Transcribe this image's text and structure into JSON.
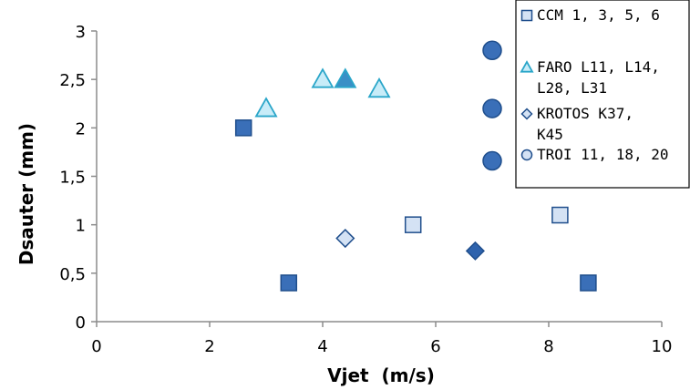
{
  "chart_data": {
    "type": "scatter",
    "xlabel": "Vjet  (m/s)",
    "ylabel": "Dsauter (mm)",
    "xlim": [
      0,
      10
    ],
    "ylim": [
      0,
      3
    ],
    "xticks": [
      "0",
      "2",
      "4",
      "6",
      "8",
      "10"
    ],
    "yticks": [
      "0",
      "0,5",
      "1",
      "1,5",
      "2",
      "2,5",
      "3"
    ],
    "grid": false,
    "legend_position": "top-right",
    "series": [
      {
        "name": "CCM 1, 3, 5, 6",
        "legend_lines": [
          "CCM 1, 3, 5, 6"
        ],
        "marker": "square",
        "points": [
          {
            "x": 2.6,
            "y": 2.0,
            "fill": "#3a6fb8"
          },
          {
            "x": 3.4,
            "y": 0.4,
            "fill": "#3a6fb8"
          },
          {
            "x": 5.6,
            "y": 1.0,
            "fill": "#d4e2f4"
          },
          {
            "x": 8.2,
            "y": 1.1,
            "fill": "#d4e2f4"
          },
          {
            "x": 8.7,
            "y": 0.4,
            "fill": "#3a6fb8"
          }
        ]
      },
      {
        "name": "FARO L11, L14, L28, L31",
        "legend_lines": [
          "FARO L11, L14,",
          "L28, L31"
        ],
        "marker": "triangle",
        "points": [
          {
            "x": 3.0,
            "y": 2.2,
            "fill": "#c8ecf8"
          },
          {
            "x": 4.0,
            "y": 2.5,
            "fill": "#c8ecf8"
          },
          {
            "x": 4.4,
            "y": 2.5,
            "fill": "#3a8fc6"
          },
          {
            "x": 5.0,
            "y": 2.4,
            "fill": "#c8ecf8"
          }
        ]
      },
      {
        "name": "KROTOS K37, K45",
        "legend_lines": [
          "KROTOS K37,",
          "K45"
        ],
        "marker": "diamond",
        "points": [
          {
            "x": 4.4,
            "y": 0.86,
            "fill": "#d4e2f4"
          },
          {
            "x": 6.7,
            "y": 0.73,
            "fill": "#2e63ad"
          }
        ]
      },
      {
        "name": "TROI 11, 18, 20",
        "legend_lines": [
          "TROI 11, 18, 20"
        ],
        "marker": "circle",
        "points": [
          {
            "x": 7.0,
            "y": 2.8,
            "fill": "#3a6fb8"
          },
          {
            "x": 7.0,
            "y": 2.2,
            "fill": "#3a6fb8"
          },
          {
            "x": 7.0,
            "y": 1.66,
            "fill": "#3a6fb8"
          }
        ]
      }
    ]
  },
  "colors": {
    "axis": "#8c8c8c",
    "marker_stroke": "#1f4e8c",
    "triangle_stroke": "#2aa6c9",
    "legend_swatch_light": "#d4e2f4",
    "legend_border": "#000000"
  }
}
